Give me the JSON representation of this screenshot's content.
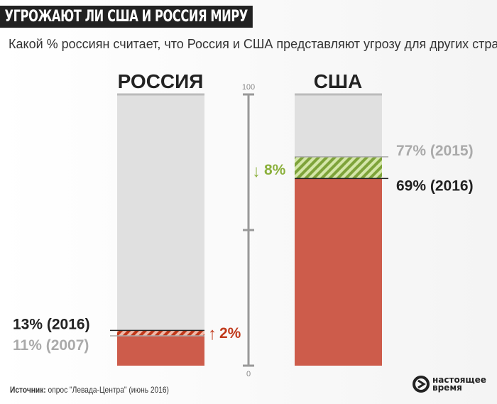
{
  "title": "УГРОЖАЮТ ЛИ США И РОССИЯ  МИРУ",
  "subtitle": "Какой % россиян считает, что Россия и США  представляют угрозу для других стран",
  "source_label": "Источник:",
  "source_text": " опрос \"Левада-Центра\" (июнь 2016)",
  "logo": {
    "line1": "настоящее",
    "line2": "время"
  },
  "colors": {
    "red": "#cd5c4b",
    "gray": "#e0e0e0",
    "green": "#8bb03c",
    "red_text": "#c0391b"
  },
  "chart_data": {
    "type": "bar",
    "ylim": [
      0,
      100
    ],
    "axis_ticks": [
      "0",
      "100"
    ],
    "bars": [
      {
        "name": "РОССИЯ",
        "current": 13,
        "current_label": "13% (2016)",
        "previous": 11,
        "previous_label": "11% (2007)",
        "change_label": "2%",
        "direction": "up"
      },
      {
        "name": "США",
        "current": 69,
        "current_label": "69% (2016)",
        "previous": 77,
        "previous_label": "77% (2015)",
        "change_label": "8%",
        "direction": "down"
      }
    ]
  }
}
